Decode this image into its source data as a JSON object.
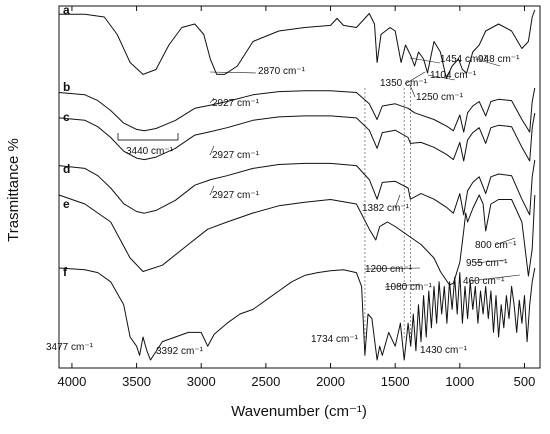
{
  "chart_data": {
    "type": "line",
    "title": "",
    "xlabel": "Wavenumber (cm⁻¹)",
    "ylabel": "Trasmittance %",
    "xlim": [
      4100,
      380
    ],
    "x_reversed": true,
    "x_ticks": [
      "4000",
      "3500",
      "3000",
      "2500",
      "2000",
      "1500",
      "1000",
      "500"
    ],
    "y_ticks_shown": false,
    "grid": false,
    "legend": "none",
    "series": [
      {
        "name": "a",
        "points": [
          [
            4100,
            0.06
          ],
          [
            3900,
            0.06
          ],
          [
            3750,
            0.1
          ],
          [
            3650,
            0.35
          ],
          [
            3550,
            0.75
          ],
          [
            3450,
            0.92
          ],
          [
            3350,
            0.85
          ],
          [
            3250,
            0.5
          ],
          [
            3150,
            0.25
          ],
          [
            3050,
            0.2
          ],
          [
            2980,
            0.35
          ],
          [
            2930,
            0.7
          ],
          [
            2880,
            0.92
          ],
          [
            2820,
            0.92
          ],
          [
            2720,
            0.8
          ],
          [
            2600,
            0.45
          ],
          [
            2400,
            0.3
          ],
          [
            2200,
            0.25
          ],
          [
            2000,
            0.22
          ],
          [
            1950,
            0.12
          ],
          [
            1900,
            0.22
          ],
          [
            1800,
            0.25
          ],
          [
            1750,
            0.15
          ],
          [
            1700,
            0.05
          ],
          [
            1660,
            0.2
          ],
          [
            1640,
            0.75
          ],
          [
            1610,
            0.35
          ],
          [
            1540,
            0.25
          ],
          [
            1500,
            0.3
          ],
          [
            1454,
            0.75
          ],
          [
            1420,
            0.5
          ],
          [
            1380,
            0.65
          ],
          [
            1350,
            0.8
          ],
          [
            1320,
            0.6
          ],
          [
            1280,
            0.7
          ],
          [
            1250,
            0.9
          ],
          [
            1200,
            0.45
          ],
          [
            1150,
            0.6
          ],
          [
            1104,
            0.98
          ],
          [
            1060,
            0.8
          ],
          [
            1010,
            0.7
          ],
          [
            980,
            0.85
          ],
          [
            948,
            0.9
          ],
          [
            900,
            0.6
          ],
          [
            850,
            0.5
          ],
          [
            800,
            0.3
          ],
          [
            700,
            0.2
          ],
          [
            600,
            0.3
          ],
          [
            520,
            0.55
          ],
          [
            470,
            0.45
          ],
          [
            440,
            0.1
          ],
          [
            420,
            0.0
          ]
        ]
      },
      {
        "name": "b",
        "points": [
          [
            4100,
            0.1
          ],
          [
            3900,
            0.15
          ],
          [
            3800,
            0.28
          ],
          [
            3700,
            0.5
          ],
          [
            3600,
            0.78
          ],
          [
            3500,
            0.92
          ],
          [
            3440,
            0.95
          ],
          [
            3350,
            0.9
          ],
          [
            3200,
            0.72
          ],
          [
            3050,
            0.45
          ],
          [
            2927,
            0.38
          ],
          [
            2800,
            0.3
          ],
          [
            2600,
            0.15
          ],
          [
            2400,
            0.08
          ],
          [
            2200,
            0.06
          ],
          [
            2000,
            0.06
          ],
          [
            1800,
            0.1
          ],
          [
            1700,
            0.35
          ],
          [
            1640,
            0.7
          ],
          [
            1600,
            0.4
          ],
          [
            1500,
            0.35
          ],
          [
            1400,
            0.45
          ],
          [
            1350,
            0.55
          ],
          [
            1200,
            0.7
          ],
          [
            1100,
            0.85
          ],
          [
            1050,
            0.95
          ],
          [
            1000,
            0.6
          ],
          [
            970,
            0.98
          ],
          [
            940,
            0.55
          ],
          [
            900,
            0.4
          ],
          [
            850,
            0.3
          ],
          [
            800,
            0.62
          ],
          [
            760,
            0.3
          ],
          [
            700,
            0.25
          ],
          [
            600,
            0.28
          ],
          [
            520,
            0.7
          ],
          [
            460,
            0.98
          ],
          [
            440,
            0.3
          ],
          [
            420,
            0.0
          ]
        ]
      },
      {
        "name": "c",
        "points": [
          [
            4100,
            0.1
          ],
          [
            3900,
            0.15
          ],
          [
            3800,
            0.28
          ],
          [
            3700,
            0.5
          ],
          [
            3600,
            0.78
          ],
          [
            3500,
            0.92
          ],
          [
            3440,
            0.95
          ],
          [
            3350,
            0.9
          ],
          [
            3200,
            0.72
          ],
          [
            3050,
            0.45
          ],
          [
            2927,
            0.38
          ],
          [
            2800,
            0.3
          ],
          [
            2600,
            0.15
          ],
          [
            2400,
            0.08
          ],
          [
            2200,
            0.06
          ],
          [
            2000,
            0.06
          ],
          [
            1800,
            0.1
          ],
          [
            1700,
            0.35
          ],
          [
            1640,
            0.72
          ],
          [
            1600,
            0.4
          ],
          [
            1500,
            0.35
          ],
          [
            1400,
            0.5
          ],
          [
            1382,
            0.62
          ],
          [
            1300,
            0.6
          ],
          [
            1200,
            0.7
          ],
          [
            1100,
            0.85
          ],
          [
            1050,
            0.95
          ],
          [
            1000,
            0.6
          ],
          [
            970,
            0.98
          ],
          [
            940,
            0.55
          ],
          [
            900,
            0.4
          ],
          [
            850,
            0.3
          ],
          [
            800,
            0.62
          ],
          [
            760,
            0.3
          ],
          [
            700,
            0.25
          ],
          [
            600,
            0.28
          ],
          [
            520,
            0.7
          ],
          [
            460,
            0.98
          ],
          [
            440,
            0.3
          ],
          [
            420,
            0.0
          ]
        ]
      },
      {
        "name": "d",
        "points": [
          [
            4100,
            0.1
          ],
          [
            3900,
            0.15
          ],
          [
            3800,
            0.28
          ],
          [
            3700,
            0.5
          ],
          [
            3600,
            0.78
          ],
          [
            3500,
            0.92
          ],
          [
            3440,
            0.95
          ],
          [
            3350,
            0.9
          ],
          [
            3200,
            0.72
          ],
          [
            3050,
            0.45
          ],
          [
            2927,
            0.35
          ],
          [
            2800,
            0.28
          ],
          [
            2600,
            0.15
          ],
          [
            2400,
            0.08
          ],
          [
            2200,
            0.06
          ],
          [
            2000,
            0.06
          ],
          [
            1800,
            0.1
          ],
          [
            1700,
            0.35
          ],
          [
            1640,
            0.7
          ],
          [
            1600,
            0.4
          ],
          [
            1500,
            0.38
          ],
          [
            1400,
            0.5
          ],
          [
            1382,
            0.7
          ],
          [
            1300,
            0.6
          ],
          [
            1200,
            0.7
          ],
          [
            1100,
            0.85
          ],
          [
            1050,
            0.95
          ],
          [
            1000,
            0.6
          ],
          [
            970,
            0.98
          ],
          [
            940,
            0.55
          ],
          [
            900,
            0.4
          ],
          [
            850,
            0.3
          ],
          [
            800,
            0.6
          ],
          [
            760,
            0.3
          ],
          [
            700,
            0.25
          ],
          [
            600,
            0.28
          ],
          [
            520,
            0.7
          ],
          [
            460,
            0.98
          ],
          [
            440,
            0.3
          ],
          [
            420,
            0.0
          ]
        ]
      },
      {
        "name": "e",
        "points": [
          [
            4100,
            0.0
          ],
          [
            3900,
            0.1
          ],
          [
            3700,
            0.3
          ],
          [
            3550,
            0.7
          ],
          [
            3450,
            0.85
          ],
          [
            3300,
            0.78
          ],
          [
            3100,
            0.55
          ],
          [
            2950,
            0.38
          ],
          [
            2800,
            0.3
          ],
          [
            2600,
            0.2
          ],
          [
            2400,
            0.12
          ],
          [
            2200,
            0.08
          ],
          [
            2000,
            0.05
          ],
          [
            1800,
            0.1
          ],
          [
            1700,
            0.38
          ],
          [
            1650,
            0.5
          ],
          [
            1620,
            0.35
          ],
          [
            1560,
            0.3
          ],
          [
            1500,
            0.35
          ],
          [
            1400,
            0.45
          ],
          [
            1300,
            0.55
          ],
          [
            1200,
            0.7
          ],
          [
            1150,
            0.85
          ],
          [
            1080,
            1.0
          ],
          [
            1050,
            0.98
          ],
          [
            1000,
            0.75
          ],
          [
            970,
            0.4
          ],
          [
            955,
            0.2
          ],
          [
            940,
            0.3
          ],
          [
            900,
            0.15
          ],
          [
            850,
            0.0
          ],
          [
            820,
            0.1
          ],
          [
            800,
            0.4
          ],
          [
            760,
            0.1
          ],
          [
            700,
            0.05
          ],
          [
            600,
            0.05
          ],
          [
            520,
            0.3
          ],
          [
            470,
            0.9
          ],
          [
            440,
            0.6
          ],
          [
            420,
            0.0
          ]
        ]
      },
      {
        "name": "f",
        "points": [
          [
            4100,
            0.0
          ],
          [
            3900,
            0.02
          ],
          [
            3800,
            0.05
          ],
          [
            3700,
            0.15
          ],
          [
            3600,
            0.4
          ],
          [
            3550,
            0.75
          ],
          [
            3500,
            0.85
          ],
          [
            3477,
            0.95
          ],
          [
            3450,
            0.75
          ],
          [
            3420,
            0.9
          ],
          [
            3392,
            1.0
          ],
          [
            3300,
            0.8
          ],
          [
            3200,
            0.75
          ],
          [
            3100,
            0.7
          ],
          [
            3000,
            0.7
          ],
          [
            2950,
            0.85
          ],
          [
            2900,
            0.72
          ],
          [
            2800,
            0.6
          ],
          [
            2700,
            0.5
          ],
          [
            2600,
            0.45
          ],
          [
            2500,
            0.35
          ],
          [
            2400,
            0.25
          ],
          [
            2300,
            0.15
          ],
          [
            2200,
            0.08
          ],
          [
            2100,
            0.05
          ],
          [
            2000,
            0.03
          ],
          [
            1900,
            0.02
          ],
          [
            1800,
            0.05
          ],
          [
            1760,
            0.2
          ],
          [
            1734,
            0.95
          ],
          [
            1710,
            0.5
          ],
          [
            1680,
            0.55
          ],
          [
            1640,
            1.0
          ],
          [
            1620,
            0.85
          ],
          [
            1600,
            0.95
          ],
          [
            1550,
            0.7
          ],
          [
            1500,
            0.85
          ],
          [
            1460,
            0.6
          ],
          [
            1430,
            1.0
          ],
          [
            1400,
            0.6
          ],
          [
            1380,
            0.85
          ],
          [
            1360,
            0.5
          ],
          [
            1340,
            0.9
          ],
          [
            1320,
            0.4
          ],
          [
            1300,
            0.8
          ],
          [
            1280,
            0.3
          ],
          [
            1260,
            0.75
          ],
          [
            1240,
            0.25
          ],
          [
            1220,
            0.65
          ],
          [
            1200,
            0.2
          ],
          [
            1180,
            0.6
          ],
          [
            1160,
            0.15
          ],
          [
            1140,
            0.5
          ],
          [
            1120,
            0.2
          ],
          [
            1100,
            0.6
          ],
          [
            1080,
            0.15
          ],
          [
            1060,
            0.45
          ],
          [
            1040,
            0.1
          ],
          [
            1020,
            0.5
          ],
          [
            1000,
            0.05
          ],
          [
            980,
            0.6
          ],
          [
            960,
            0.2
          ],
          [
            940,
            0.55
          ],
          [
            920,
            0.15
          ],
          [
            900,
            0.45
          ],
          [
            880,
            0.2
          ],
          [
            860,
            0.6
          ],
          [
            840,
            0.25
          ],
          [
            820,
            0.5
          ],
          [
            800,
            0.2
          ],
          [
            780,
            0.55
          ],
          [
            760,
            0.25
          ],
          [
            740,
            0.7
          ],
          [
            720,
            0.3
          ],
          [
            700,
            0.75
          ],
          [
            680,
            0.4
          ],
          [
            660,
            0.65
          ],
          [
            640,
            0.3
          ],
          [
            620,
            0.55
          ],
          [
            600,
            0.2
          ],
          [
            580,
            0.4
          ],
          [
            560,
            0.7
          ],
          [
            540,
            0.35
          ],
          [
            520,
            0.6
          ],
          [
            500,
            0.3
          ],
          [
            480,
            0.8
          ],
          [
            460,
            0.4
          ],
          [
            440,
            0.15
          ],
          [
            420,
            0.0
          ]
        ]
      }
    ],
    "annotations": [
      "2870 cm⁻¹",
      "1454 cm⁻¹",
      "1350 cm⁻¹",
      "1250 cm⁻¹",
      "1104 cm⁻¹",
      "948 cm⁻¹",
      "2927 cm⁻¹",
      "3440 cm⁻¹",
      "2927 cm⁻¹",
      "2927 cm⁻¹",
      "1382 cm⁻¹",
      "800 cm⁻¹",
      "1200 cm⁻¹",
      "955 cm⁻¹",
      "1080 cm⁻¹",
      "460 cm⁻¹",
      "3477 cm⁻¹",
      "3392 cm⁻¹",
      "1734 cm⁻¹",
      "1430 cm⁻¹"
    ],
    "reference_lines": [
      1734,
      1430,
      1382
    ]
  }
}
